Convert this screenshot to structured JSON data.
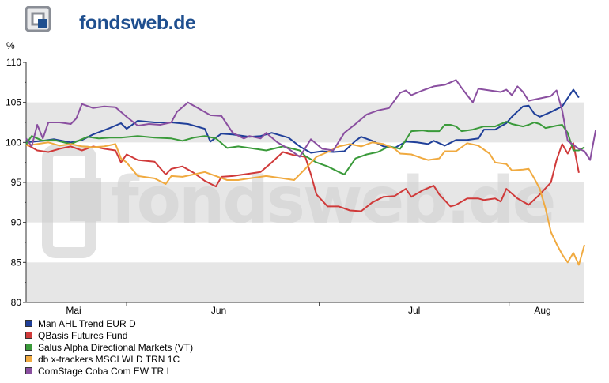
{
  "brand": {
    "name": "fondsweb",
    "suffix": ".de",
    "watermark": "fondsweb.de"
  },
  "chart_data": {
    "type": "line",
    "ylabel": "%",
    "ylim": [
      80,
      110
    ],
    "yticks": [
      80,
      85,
      90,
      95,
      100,
      105,
      110
    ],
    "xlim": [
      0,
      100
    ],
    "xtick_labels": [
      {
        "label": "Mai",
        "x": 8.5
      },
      {
        "label": "Jun",
        "x": 34.5
      },
      {
        "label": "Jul",
        "x": 69.5
      },
      {
        "label": "Aug",
        "x": 92.5
      }
    ],
    "x_month_boundaries": [
      18,
      52.5,
      86.5
    ],
    "grid": "alternating-bands",
    "legend": "bottom-left",
    "series": [
      {
        "name": "Man AHL Trend EUR D",
        "color": "#1f3f99",
        "points": [
          [
            0,
            100
          ],
          [
            3,
            100.2
          ],
          [
            5,
            100.4
          ],
          [
            8,
            100
          ],
          [
            10,
            100.3
          ],
          [
            12,
            101
          ],
          [
            15,
            101.8
          ],
          [
            17,
            102.4
          ],
          [
            18,
            101.7
          ],
          [
            20,
            102.7
          ],
          [
            23,
            102.5
          ],
          [
            26,
            102.5
          ],
          [
            29,
            102.3
          ],
          [
            32,
            101.7
          ],
          [
            33,
            100.1
          ],
          [
            35,
            101.1
          ],
          [
            37,
            101
          ],
          [
            40,
            100.7
          ],
          [
            42,
            100.8
          ],
          [
            44,
            101.2
          ],
          [
            47,
            100.6
          ],
          [
            49,
            99.5
          ],
          [
            51,
            98.7
          ],
          [
            53,
            98.9
          ],
          [
            55,
            98.8
          ],
          [
            57,
            98.9
          ],
          [
            59,
            100.2
          ],
          [
            60,
            100.7
          ],
          [
            62,
            100.2
          ],
          [
            64,
            99.5
          ],
          [
            66,
            99.3
          ],
          [
            68,
            100.1
          ],
          [
            70,
            100
          ],
          [
            72,
            99.8
          ],
          [
            73,
            100.2
          ],
          [
            75,
            99.6
          ],
          [
            77,
            100.3
          ],
          [
            79,
            100.3
          ],
          [
            81,
            100.5
          ],
          [
            82,
            101.6
          ],
          [
            84,
            101.6
          ],
          [
            86,
            102.4
          ],
          [
            87,
            103.2
          ],
          [
            89,
            104.5
          ],
          [
            90,
            104.6
          ],
          [
            91,
            103.6
          ],
          [
            92,
            103.2
          ],
          [
            94,
            103.8
          ],
          [
            96,
            104.5
          ],
          [
            98,
            106.6
          ],
          [
            99,
            105.6
          ]
        ]
      },
      {
        "name": "QBasis Futures Fund",
        "color": "#d03a3a",
        "points": [
          [
            0,
            99.8
          ],
          [
            2,
            99
          ],
          [
            4,
            98.8
          ],
          [
            6,
            99.2
          ],
          [
            8,
            99.5
          ],
          [
            10,
            99
          ],
          [
            12,
            99.5
          ],
          [
            14,
            99.2
          ],
          [
            16,
            99
          ],
          [
            17,
            97.5
          ],
          [
            18,
            98.5
          ],
          [
            20,
            97.8
          ],
          [
            23,
            97.6
          ],
          [
            25,
            96
          ],
          [
            26,
            96.7
          ],
          [
            28,
            97
          ],
          [
            30,
            96.2
          ],
          [
            32,
            95.2
          ],
          [
            34,
            94.5
          ],
          [
            35,
            95.7
          ],
          [
            37,
            95.8
          ],
          [
            40,
            96.1
          ],
          [
            42,
            96.3
          ],
          [
            44,
            97.5
          ],
          [
            46,
            98.8
          ],
          [
            48,
            98.4
          ],
          [
            50,
            98.2
          ],
          [
            51,
            96
          ],
          [
            52,
            93.5
          ],
          [
            54,
            92
          ],
          [
            56,
            92
          ],
          [
            58,
            91.5
          ],
          [
            60,
            91.4
          ],
          [
            62,
            92.5
          ],
          [
            64,
            93.2
          ],
          [
            66,
            93.3
          ],
          [
            68,
            94.2
          ],
          [
            69,
            93.2
          ],
          [
            71,
            94
          ],
          [
            73,
            94.6
          ],
          [
            74,
            93.5
          ],
          [
            76,
            92
          ],
          [
            77,
            92.2
          ],
          [
            79,
            93
          ],
          [
            81,
            93
          ],
          [
            82,
            92.8
          ],
          [
            84,
            93
          ],
          [
            85,
            92.6
          ],
          [
            86,
            94.2
          ],
          [
            88,
            93
          ],
          [
            90,
            92.2
          ],
          [
            92,
            93.5
          ],
          [
            94,
            95
          ],
          [
            95,
            97.8
          ],
          [
            96,
            99.8
          ],
          [
            97,
            98.6
          ],
          [
            98,
            99.9
          ],
          [
            99,
            96.2
          ]
        ]
      },
      {
        "name": "Salus Alpha Directional Markets (VT)",
        "color": "#3a9a3a",
        "points": [
          [
            0,
            99.8
          ],
          [
            1,
            100.8
          ],
          [
            3,
            100.2
          ],
          [
            5,
            100.3
          ],
          [
            8,
            99.8
          ],
          [
            11,
            100.7
          ],
          [
            13,
            100.5
          ],
          [
            15,
            100.6
          ],
          [
            17,
            100.6
          ],
          [
            20,
            100.8
          ],
          [
            23,
            100.6
          ],
          [
            26,
            100.5
          ],
          [
            28,
            100.2
          ],
          [
            30,
            100.6
          ],
          [
            32,
            100.8
          ],
          [
            34,
            100.5
          ],
          [
            36,
            99.3
          ],
          [
            38,
            99.5
          ],
          [
            40,
            99.3
          ],
          [
            43,
            99
          ],
          [
            46,
            99.5
          ],
          [
            49,
            99
          ],
          [
            50,
            98.3
          ],
          [
            52,
            97.5
          ],
          [
            54,
            97
          ],
          [
            56,
            96.3
          ],
          [
            57,
            96
          ],
          [
            59,
            98
          ],
          [
            61,
            98.5
          ],
          [
            63,
            98.8
          ],
          [
            65,
            99.5
          ],
          [
            67,
            99.2
          ],
          [
            69,
            101.4
          ],
          [
            71,
            101.5
          ],
          [
            72,
            101.4
          ],
          [
            74,
            101.4
          ],
          [
            75,
            102.2
          ],
          [
            76,
            102.2
          ],
          [
            77,
            102
          ],
          [
            78,
            101.4
          ],
          [
            80,
            101.6
          ],
          [
            82,
            102
          ],
          [
            84,
            102
          ],
          [
            86,
            102.6
          ],
          [
            87,
            102.3
          ],
          [
            89,
            102
          ],
          [
            90,
            102.2
          ],
          [
            91,
            102.5
          ],
          [
            92,
            102.3
          ],
          [
            93,
            101.8
          ],
          [
            95,
            102.1
          ],
          [
            96,
            102.2
          ],
          [
            97,
            101.2
          ],
          [
            98,
            99
          ],
          [
            99,
            99
          ],
          [
            100,
            99.4
          ]
        ]
      },
      {
        "name": "db x-trackers MSCI WLD TRN 1C",
        "color": "#f0aa40",
        "points": [
          [
            0,
            99.6
          ],
          [
            2,
            99.8
          ],
          [
            4,
            100
          ],
          [
            6,
            99.6
          ],
          [
            8,
            99.8
          ],
          [
            10,
            99.5
          ],
          [
            12,
            99.4
          ],
          [
            14,
            99.5
          ],
          [
            16,
            99.8
          ],
          [
            17,
            98
          ],
          [
            18,
            97.5
          ],
          [
            20,
            95.8
          ],
          [
            23,
            95.5
          ],
          [
            25,
            94.8
          ],
          [
            26,
            95.8
          ],
          [
            28,
            95.7
          ],
          [
            30,
            96
          ],
          [
            32,
            96.3
          ],
          [
            34,
            95.8
          ],
          [
            36,
            95.3
          ],
          [
            38,
            95.3
          ],
          [
            40,
            95.5
          ],
          [
            43,
            95.8
          ],
          [
            46,
            95.5
          ],
          [
            48,
            95.3
          ],
          [
            50,
            96.7
          ],
          [
            52,
            98.2
          ],
          [
            54,
            98.8
          ],
          [
            56,
            99.5
          ],
          [
            58,
            99.8
          ],
          [
            60,
            99.5
          ],
          [
            62,
            100
          ],
          [
            64,
            99.8
          ],
          [
            66,
            99.2
          ],
          [
            67,
            98.6
          ],
          [
            69,
            98.5
          ],
          [
            71,
            98
          ],
          [
            72,
            97.8
          ],
          [
            74,
            98
          ],
          [
            75,
            98.9
          ],
          [
            77,
            98.9
          ],
          [
            79,
            99.9
          ],
          [
            81,
            99.6
          ],
          [
            83,
            98.6
          ],
          [
            84,
            97.5
          ],
          [
            86,
            97.3
          ],
          [
            87,
            96.5
          ],
          [
            89,
            96.6
          ],
          [
            90,
            96.7
          ],
          [
            91,
            95.5
          ],
          [
            92,
            94.2
          ],
          [
            93,
            91.8
          ],
          [
            94,
            88.8
          ],
          [
            95,
            87.3
          ],
          [
            96,
            86
          ],
          [
            97,
            85
          ],
          [
            98,
            86.2
          ],
          [
            99,
            84.7
          ],
          [
            100,
            87.2
          ]
        ]
      },
      {
        "name": "ComStage Coba Com EW TR I",
        "color": "#8a4fa0",
        "points": [
          [
            0,
            100.5
          ],
          [
            1,
            99.5
          ],
          [
            2,
            102.2
          ],
          [
            3,
            100.5
          ],
          [
            4,
            102.5
          ],
          [
            6,
            102.5
          ],
          [
            8,
            102.3
          ],
          [
            9,
            103
          ],
          [
            10,
            104.8
          ],
          [
            12,
            104.3
          ],
          [
            14,
            104.5
          ],
          [
            16,
            104.4
          ],
          [
            17,
            103.8
          ],
          [
            18,
            103.2
          ],
          [
            20,
            102.1
          ],
          [
            22,
            102.3
          ],
          [
            24,
            102.2
          ],
          [
            26,
            102.5
          ],
          [
            27,
            103.8
          ],
          [
            29,
            105
          ],
          [
            31,
            104.2
          ],
          [
            33,
            103.4
          ],
          [
            35,
            103.3
          ],
          [
            37,
            101.2
          ],
          [
            39,
            100.5
          ],
          [
            40,
            100.8
          ],
          [
            42,
            100.5
          ],
          [
            43,
            101.2
          ],
          [
            45,
            100
          ],
          [
            47,
            99.2
          ],
          [
            49,
            98.2
          ],
          [
            51,
            100.4
          ],
          [
            53,
            99.2
          ],
          [
            55,
            99
          ],
          [
            57,
            101.2
          ],
          [
            59,
            102.3
          ],
          [
            61,
            103.5
          ],
          [
            63,
            104
          ],
          [
            65,
            104.3
          ],
          [
            67,
            106.2
          ],
          [
            68,
            106.5
          ],
          [
            69,
            105.9
          ],
          [
            71,
            106.5
          ],
          [
            73,
            107
          ],
          [
            75,
            107.2
          ],
          [
            77,
            107.8
          ],
          [
            78,
            106.8
          ],
          [
            80,
            105
          ],
          [
            81,
            106.7
          ],
          [
            83,
            106.5
          ],
          [
            85,
            106.3
          ],
          [
            86,
            106.6
          ],
          [
            87,
            105.9
          ],
          [
            88,
            107
          ],
          [
            89,
            106.3
          ],
          [
            90,
            105.2
          ],
          [
            92,
            105.5
          ],
          [
            94,
            105.8
          ],
          [
            95,
            106.5
          ],
          [
            96,
            104
          ],
          [
            97,
            100.2
          ],
          [
            99,
            99.2
          ],
          [
            100,
            98.9
          ],
          [
            101,
            97.8
          ],
          [
            102,
            101.5
          ]
        ]
      }
    ]
  }
}
